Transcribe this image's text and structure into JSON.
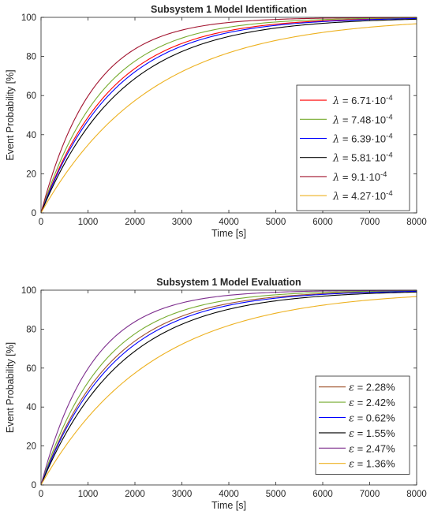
{
  "chart_data": [
    {
      "type": "line",
      "title": "Subsystem 1 Model Identification",
      "xlabel": "Time [s]",
      "ylabel": "Event Probability [%]",
      "xlim": [
        0,
        8000
      ],
      "ylim": [
        0,
        100
      ],
      "xticks": [
        "0",
        "1000",
        "2000",
        "3000",
        "4000",
        "5000",
        "6000",
        "7000",
        "8000"
      ],
      "yticks": [
        "0",
        "20",
        "40",
        "60",
        "80",
        "100"
      ],
      "grid": false,
      "legend_position": "right",
      "legend_symbol": "λ",
      "series": [
        {
          "name": "6.71·10",
          "exponent": "-4",
          "rate": 0.000671,
          "color": "#ff0000"
        },
        {
          "name": "7.48·10",
          "exponent": "-4",
          "rate": 0.000748,
          "color": "#77ac30"
        },
        {
          "name": "6.39·10",
          "exponent": "-4",
          "rate": 0.000639,
          "color": "#0000ff"
        },
        {
          "name": "5.81·10",
          "exponent": "-4",
          "rate": 0.000581,
          "color": "#000000"
        },
        {
          "name": "9.1·10",
          "exponent": "-4",
          "rate": 0.00091,
          "color": "#a2142f"
        },
        {
          "name": "4.27·10",
          "exponent": "-4",
          "rate": 0.000427,
          "color": "#edb120"
        }
      ]
    },
    {
      "type": "line",
      "title": "Subsystem 1 Model Evaluation",
      "xlabel": "Time [s]",
      "ylabel": "Event Probability [%]",
      "xlim": [
        0,
        8000
      ],
      "ylim": [
        0,
        100
      ],
      "xticks": [
        "0",
        "1000",
        "2000",
        "3000",
        "4000",
        "5000",
        "6000",
        "7000",
        "8000"
      ],
      "yticks": [
        "0",
        "20",
        "40",
        "60",
        "80",
        "100"
      ],
      "grid": false,
      "legend_position": "bottom-right",
      "legend_symbol": "ε",
      "series": [
        {
          "name": "2.28%",
          "rate": 0.000671,
          "color": "#a0522d"
        },
        {
          "name": "2.42%",
          "rate": 0.000748,
          "color": "#77ac30"
        },
        {
          "name": "0.62%",
          "rate": 0.000639,
          "color": "#0000ff"
        },
        {
          "name": "1.55%",
          "rate": 0.000581,
          "color": "#000000"
        },
        {
          "name": "2.47%",
          "rate": 0.00091,
          "color": "#7e2f8e"
        },
        {
          "name": "1.36%",
          "rate": 0.000427,
          "color": "#edb120"
        }
      ]
    }
  ]
}
